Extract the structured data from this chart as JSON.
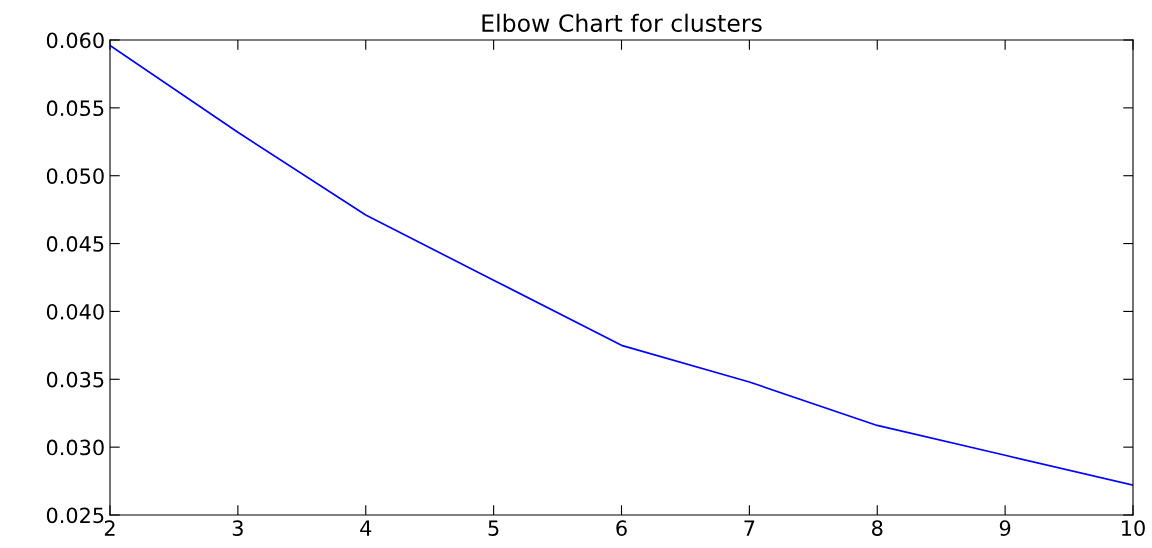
{
  "chart_data": {
    "type": "line",
    "title": "Elbow Chart for clusters",
    "x": [
      2,
      3,
      4,
      5,
      6,
      7,
      8,
      9,
      10
    ],
    "series": [
      {
        "color": "#0000ff",
        "values": [
          0.0596,
          0.0532,
          0.0471,
          0.0423,
          0.0375,
          0.0348,
          0.0316,
          0.0294,
          0.0272
        ]
      }
    ],
    "xlim": [
      2,
      10
    ],
    "xticks": [
      2,
      3,
      4,
      5,
      6,
      7,
      8,
      9,
      10
    ],
    "ylim": [
      0.025,
      0.06
    ],
    "yticks": [
      {
        "value": 0.025,
        "label": "0.025"
      },
      {
        "value": 0.03,
        "label": "0.030"
      },
      {
        "value": 0.035,
        "label": "0.035"
      },
      {
        "value": 0.04,
        "label": "0.040"
      },
      {
        "value": 0.045,
        "label": "0.045"
      },
      {
        "value": 0.05,
        "label": "0.050"
      },
      {
        "value": 0.055,
        "label": "0.055"
      },
      {
        "value": 0.06,
        "label": "0.060"
      }
    ],
    "grid": false,
    "legend": false,
    "marker": "none",
    "line_style": "solid"
  }
}
